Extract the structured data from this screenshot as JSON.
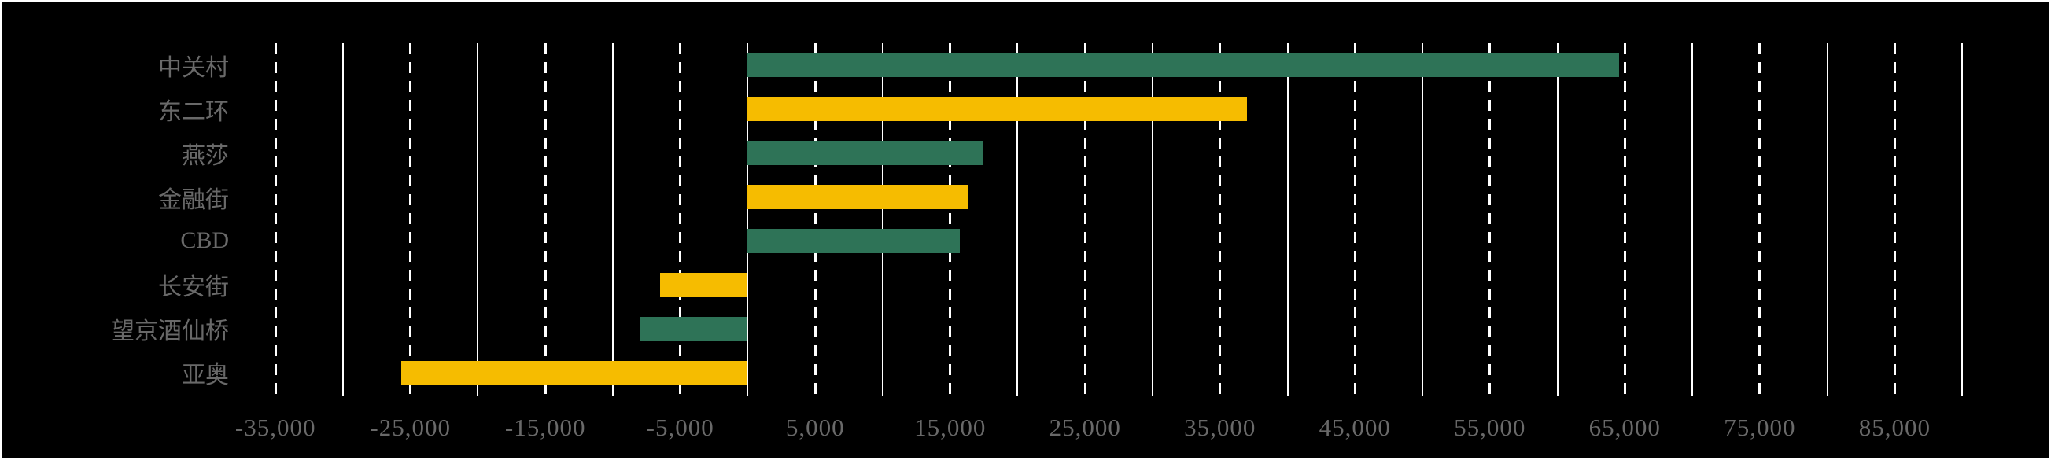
{
  "chart_data": {
    "type": "bar",
    "orientation": "horizontal",
    "title": "",
    "xlabel": "",
    "ylabel": "",
    "legend": "none",
    "categories": [
      "中关村",
      "东二环",
      "燕莎",
      "金融街",
      "CBD",
      "长安街",
      "望京酒仙桥",
      "亚奥"
    ],
    "series": [
      {
        "name": "",
        "values": [
          64600,
          37000,
          17400,
          16300,
          15700,
          -6500,
          -8000,
          -25700
        ]
      }
    ],
    "bar_colors": [
      "#2e7357",
      "#f6bc00",
      "#2e7357",
      "#f6bc00",
      "#2e7357",
      "#f6bc00",
      "#2e7357",
      "#f6bc00"
    ],
    "x_ticks": [
      {
        "value": -35000,
        "label": "-35,000"
      },
      {
        "value": -25000,
        "label": "-25,000"
      },
      {
        "value": -15000,
        "label": "-15,000"
      },
      {
        "value": -5000,
        "label": "-5,000"
      },
      {
        "value": 5000,
        "label": "5,000"
      },
      {
        "value": 15000,
        "label": "15,000"
      },
      {
        "value": 25000,
        "label": "25,000"
      },
      {
        "value": 35000,
        "label": "35,000"
      },
      {
        "value": 45000,
        "label": "45,000"
      },
      {
        "value": 55000,
        "label": "55,000"
      },
      {
        "value": 65000,
        "label": "65,000"
      },
      {
        "value": 75000,
        "label": "75,000"
      },
      {
        "value": 85000,
        "label": "85,000"
      }
    ],
    "x_solid_gridlines": [
      -30000,
      -20000,
      -10000,
      0,
      10000,
      20000,
      30000,
      40000,
      50000,
      60000,
      70000,
      80000,
      90000
    ],
    "xlim": [
      -55300,
      96700
    ],
    "grid": "vertical; dashed white lines at labeled ticks, solid white lines at multiples of 10,000",
    "colors": {
      "background": "#000000",
      "border": "#ffffff",
      "gridline": "#ffffff",
      "green_bar": "#2e7357",
      "yellow_bar": "#f6bc00",
      "axis_text": "#696969"
    }
  }
}
